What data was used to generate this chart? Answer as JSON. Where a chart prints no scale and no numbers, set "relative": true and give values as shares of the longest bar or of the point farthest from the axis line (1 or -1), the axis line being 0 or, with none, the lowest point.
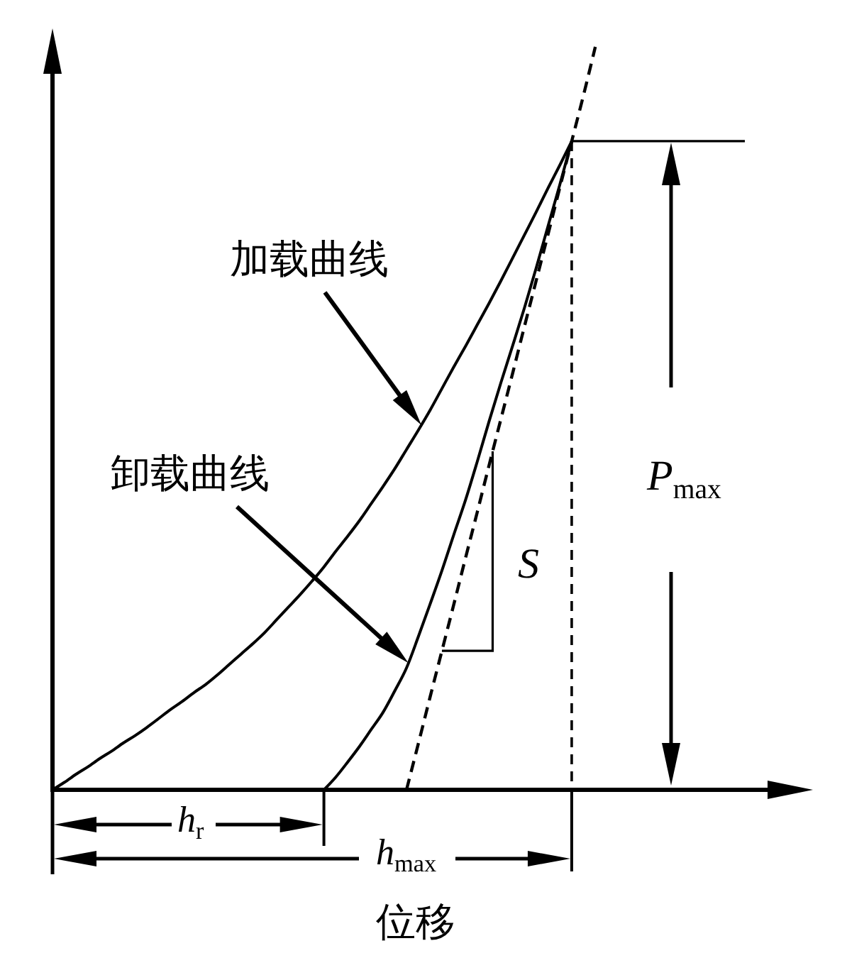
{
  "chart_data": {
    "type": "line",
    "relative": true,
    "xlabel": "位移",
    "categories": [
      null,
      null,
      null,
      null,
      null,
      null,
      null,
      null,
      null,
      null,
      null,
      null,
      null,
      null,
      null,
      null,
      null,
      null,
      null,
      null,
      null,
      null,
      null,
      null,
      null,
      null,
      null,
      null,
      null,
      null,
      null,
      null,
      null,
      null,
      null,
      null,
      null,
      null,
      null,
      null,
      null,
      null,
      null,
      null,
      null,
      null,
      null
    ],
    "series": [
      {
        "name": "加载曲线",
        "color": "#000000",
        "values": [
          0,
          0.01,
          0.021,
          0.031,
          0.042,
          0.052,
          0.063,
          0.073,
          0.084,
          0.096,
          0.108,
          0.119,
          0.131,
          0.142,
          0.155,
          0.169,
          0.183,
          0.197,
          0.212,
          0.229,
          0.246,
          0.263,
          0.281,
          0.3,
          0.321,
          0.341,
          0.362,
          0.385,
          0.408,
          0.432,
          0.458,
          0.484,
          0.511,
          0.54,
          0.569,
          0.597,
          0.626,
          0.655,
          0.685,
          0.716,
          0.747,
          0.778,
          0.81,
          0.841,
          0.873,
          null,
          null
        ]
      },
      {
        "name": "卸载曲线",
        "color": "#000000",
        "values": [
          null,
          null,
          null,
          null,
          null,
          null,
          null,
          null,
          null,
          null,
          null,
          null,
          null,
          null,
          null,
          null,
          null,
          null,
          null,
          null,
          null,
          null,
          null,
          0,
          0.017,
          0.037,
          0.058,
          0.081,
          0.104,
          0.133,
          0.164,
          0.206,
          0.25,
          0.295,
          0.343,
          0.39,
          0.442,
          0.496,
          0.548,
          0.598,
          0.649,
          0.703,
          0.759,
          0.815,
          0.873,
          null,
          null
        ]
      },
      {
        "color": "#000000",
        "line_style": "dashed",
        "values": [
          null,
          null,
          null,
          null,
          null,
          null,
          null,
          null,
          null,
          null,
          null,
          null,
          null,
          null,
          null,
          null,
          null,
          null,
          null,
          null,
          null,
          null,
          null,
          null,
          null,
          null,
          null,
          null,
          null,
          null,
          0,
          0.062,
          0.125,
          0.187,
          0.249,
          0.312,
          0.374,
          0.437,
          0.499,
          0.561,
          0.624,
          0.686,
          0.748,
          0.811,
          0.873,
          0.935,
          1
        ]
      }
    ],
    "annotations": [
      "S",
      "P$_{max}$",
      "h$_{r}$",
      "h$_{max}$"
    ]
  }
}
